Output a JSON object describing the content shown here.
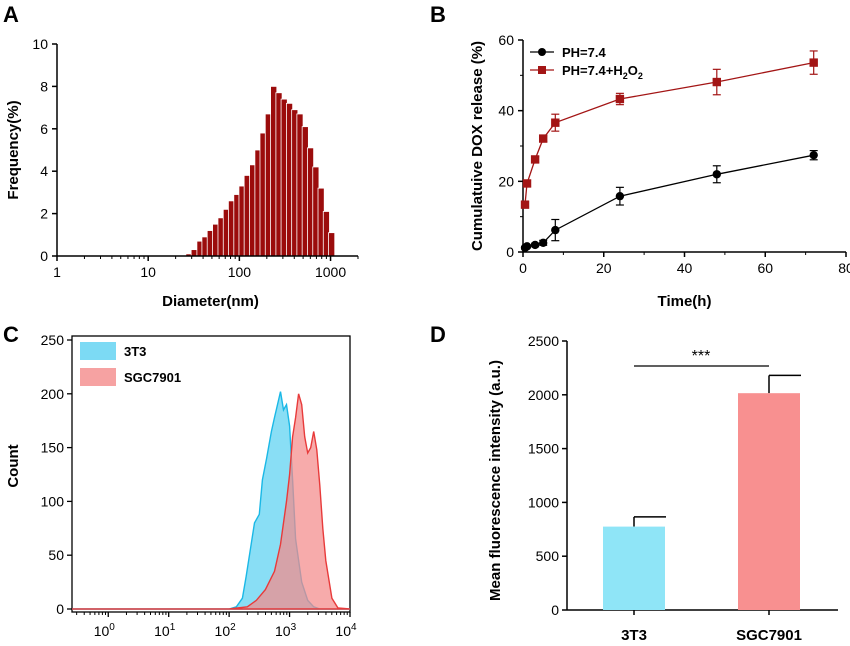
{
  "colors": {
    "dls_bar": "#9b0c0c",
    "ph74": "#000000",
    "ph74_h2o2": "#a31515",
    "cell_3t3": "#5bd1f1",
    "cell_sgc": "#f48b8b",
    "bar_3t3": "#8fe5f7",
    "bar_sgc": "#f89090"
  },
  "chart_data": [
    {
      "panel": "A",
      "type": "bar",
      "xscale": "log",
      "xlabel": "Diameter(nm)",
      "ylabel": "Frequency(%)",
      "xlim": [
        1,
        2000
      ],
      "ylim": [
        0,
        10
      ],
      "xticks": [
        1,
        10,
        100,
        1000
      ],
      "xtick_labels": [
        "1",
        "10",
        "100",
        "1000"
      ],
      "yticks": [
        0,
        2,
        4,
        6,
        8,
        10
      ],
      "x": [
        28,
        32,
        37,
        42,
        48,
        55,
        63,
        72,
        82,
        94,
        107,
        122,
        140,
        160,
        182,
        208,
        238,
        272,
        310,
        355,
        405,
        462,
        528,
        603,
        690,
        788,
        900,
        1028
      ],
      "values": [
        0.1,
        0.3,
        0.7,
        0.9,
        1.2,
        1.5,
        1.8,
        2.2,
        2.6,
        2.9,
        3.3,
        3.8,
        4.3,
        5.0,
        5.8,
        6.7,
        8.0,
        7.7,
        7.4,
        7.2,
        6.9,
        6.7,
        6.1,
        5.1,
        4.2,
        3.2,
        2.1,
        1.1
      ]
    },
    {
      "panel": "B",
      "type": "line",
      "xlabel": "Time(h)",
      "ylabel": "Cumulatuive DOX release (%)",
      "xlim": [
        0,
        80
      ],
      "ylim": [
        0,
        60
      ],
      "xticks": [
        0,
        20,
        40,
        60,
        80
      ],
      "yticks": [
        0,
        20,
        40,
        60
      ],
      "legend_position": "top-left",
      "series": [
        {
          "name": "PH=7.4",
          "marker": "circle",
          "x": [
            0.5,
            1,
            3,
            5,
            8,
            24,
            48,
            72
          ],
          "y": [
            1.2,
            1.6,
            2.0,
            2.6,
            6.2,
            15.8,
            22.0,
            27.4
          ],
          "err": [
            0.3,
            0.4,
            0.5,
            0.7,
            3.0,
            2.5,
            2.4,
            1.3
          ]
        },
        {
          "name_main": "PH=7.4+H",
          "name_sub": "2",
          "name_mid": "O",
          "name_sub2": "2",
          "marker": "square",
          "x": [
            0.5,
            1,
            3,
            5,
            8,
            24,
            48,
            72
          ],
          "y": [
            13.4,
            19.4,
            26.2,
            32.1,
            36.6,
            43.3,
            48.1,
            53.6
          ],
          "err": [
            0.5,
            0.8,
            0.8,
            0.8,
            2.4,
            1.6,
            3.6,
            3.3
          ]
        }
      ]
    },
    {
      "panel": "C",
      "type": "area",
      "xscale": "log",
      "ylabel": "Count",
      "xlim": [
        -0.6,
        4.0
      ],
      "ylim": [
        0,
        250
      ],
      "yticks": [
        0,
        50,
        100,
        150,
        200,
        250
      ],
      "xticks_exp": [
        0,
        1,
        2,
        3,
        4
      ],
      "xtick_base": "10",
      "legend_position": "top-left",
      "series": [
        {
          "name": "3T3",
          "x": [
            -0.6,
            2.0,
            2.12,
            2.22,
            2.28,
            2.35,
            2.42,
            2.5,
            2.55,
            2.62,
            2.7,
            2.75,
            2.8,
            2.85,
            2.9,
            2.95,
            3.0,
            3.05,
            3.1,
            3.2,
            3.3,
            3.4,
            3.5,
            4.0
          ],
          "y": [
            0,
            0,
            2,
            10,
            30,
            55,
            80,
            88,
            120,
            140,
            165,
            178,
            190,
            202,
            185,
            190,
            170,
            120,
            65,
            25,
            8,
            2,
            0,
            0
          ]
        },
        {
          "name": "SGC7901",
          "x": [
            -0.6,
            2.0,
            2.3,
            2.45,
            2.6,
            2.75,
            2.85,
            2.95,
            3.0,
            3.05,
            3.1,
            3.15,
            3.2,
            3.25,
            3.3,
            3.35,
            3.4,
            3.45,
            3.5,
            3.55,
            3.6,
            3.7,
            3.8,
            4.0
          ],
          "y": [
            0,
            0,
            2,
            8,
            18,
            35,
            60,
            100,
            125,
            160,
            178,
            200,
            190,
            160,
            145,
            150,
            165,
            148,
            115,
            75,
            45,
            10,
            1,
            0
          ]
        }
      ]
    },
    {
      "panel": "D",
      "type": "bar",
      "ylabel": "Mean fluorescence intensity (a.u.)",
      "categories": [
        "3T3",
        "SGC7901"
      ],
      "values": [
        775,
        2015
      ],
      "errors": [
        90,
        165
      ],
      "ylim": [
        0,
        2500
      ],
      "yticks": [
        0,
        500,
        1000,
        1500,
        2000,
        2500
      ],
      "significance": "***"
    }
  ]
}
